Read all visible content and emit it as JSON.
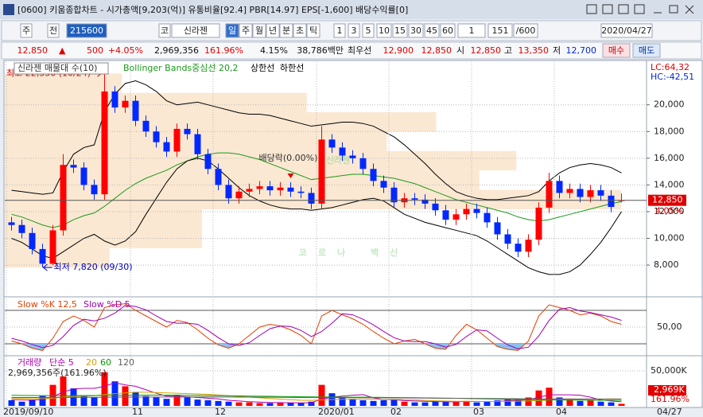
{
  "window": {
    "title": "[0600] 키움종합차트 - 시가총액[9,203(억)] 유통비율[92.4] PBR[14.97] EPS[-1,600] 배당수익률[0]"
  },
  "toolbar": {
    "items": [
      "주",
      "전",
      "215600",
      "코",
      "신라젠",
      "일",
      "주",
      "월",
      "년",
      "분",
      "초",
      "틱",
      "1",
      "3",
      "5",
      "10",
      "15",
      "30",
      "45",
      "60",
      "1",
      "151",
      "/600",
      "2020/04/27"
    ]
  },
  "quote": {
    "items": [
      "12,850",
      "▲",
      "500",
      "+4.05%",
      "2,969,356",
      "161.96%",
      "4.15%",
      "38,786백만",
      "최우선",
      "12,900",
      "12,850",
      "시",
      "12,850",
      "고",
      "13,350",
      "저",
      "12,700",
      "매수",
      "매도"
    ]
  },
  "chart_data": [
    {
      "type": "candlestick",
      "legend": "신라젠 매물대 수(10)",
      "categories": [
        "2019/09/10",
        null,
        null,
        null,
        null,
        null,
        null,
        null,
        null,
        null,
        null,
        null,
        "11",
        null,
        null,
        null,
        null,
        null,
        null,
        null,
        "12",
        null,
        null,
        null,
        null,
        null,
        null,
        null,
        null,
        null,
        "2020/01",
        null,
        null,
        null,
        null,
        null,
        null,
        "02",
        null,
        null,
        null,
        null,
        null,
        null,
        null,
        "03",
        null,
        null,
        null,
        null,
        null,
        null,
        null,
        "04",
        null,
        null,
        null,
        null,
        null,
        null
      ],
      "open": [
        11200,
        11000,
        10400,
        9200,
        8100,
        10600,
        15500,
        15300,
        14000,
        13300,
        21000,
        19800,
        20300,
        18800,
        18000,
        17200,
        16500,
        18200,
        17800,
        16300,
        15200,
        14000,
        13000,
        13500,
        13700,
        13900,
        13600,
        13800,
        13500,
        13400,
        12600,
        17400,
        16800,
        16200,
        16000,
        15200,
        14300,
        13800,
        12700,
        13000,
        12900,
        12600,
        12100,
        11400,
        11800,
        12200,
        11900,
        11200,
        10300,
        9600,
        9000,
        9900,
        12300,
        14300,
        13400,
        13700,
        13100,
        13600,
        13200,
        12850
      ],
      "high": [
        11600,
        11400,
        10800,
        9600,
        11000,
        16300,
        15900,
        15700,
        14400,
        22350,
        21400,
        20700,
        20700,
        19200,
        18400,
        17600,
        18600,
        18600,
        18200,
        16700,
        15600,
        14400,
        13900,
        14100,
        14300,
        14300,
        14200,
        14200,
        13900,
        13800,
        18400,
        17800,
        17200,
        16600,
        16400,
        15600,
        14700,
        14200,
        13400,
        13400,
        13300,
        13000,
        12500,
        12200,
        12600,
        12600,
        12300,
        11600,
        10700,
        10000,
        10300,
        12700,
        14900,
        14700,
        14100,
        14100,
        14000,
        14000,
        13600,
        13350
      ],
      "low": [
        10600,
        10000,
        8800,
        7820,
        8000,
        10200,
        14900,
        13600,
        12900,
        12900,
        19400,
        19400,
        18400,
        17600,
        16800,
        16100,
        16100,
        17400,
        15900,
        14800,
        13600,
        12600,
        12600,
        13100,
        13300,
        13200,
        13200,
        13100,
        13000,
        12200,
        12200,
        16400,
        15800,
        15600,
        14800,
        13900,
        13400,
        12300,
        12300,
        12500,
        12200,
        11700,
        11000,
        11000,
        11400,
        11500,
        10800,
        9900,
        9200,
        8600,
        8600,
        9500,
        11900,
        13000,
        13000,
        12700,
        12700,
        12800,
        11950,
        12700
      ],
      "close": [
        11000,
        10400,
        9200,
        8100,
        10600,
        15500,
        15300,
        14000,
        13300,
        21000,
        19800,
        20300,
        18800,
        18000,
        17200,
        16500,
        18200,
        17800,
        16300,
        15200,
        14000,
        13000,
        13500,
        13700,
        13900,
        13600,
        13800,
        13500,
        13400,
        12600,
        17400,
        16800,
        16200,
        16000,
        15200,
        14300,
        13800,
        12700,
        13000,
        12900,
        12600,
        12100,
        11400,
        11800,
        12200,
        11900,
        11200,
        10300,
        9600,
        9000,
        9900,
        12300,
        14300,
        13400,
        13700,
        13100,
        13600,
        13200,
        12350,
        12850
      ],
      "up_color": "#ff0000",
      "down_color": "#0028ff",
      "ylim": [
        5800,
        23200
      ],
      "yticks": [
        {
          "value": 8000,
          "label": "8,000"
        },
        {
          "value": 10000,
          "label": "10,000"
        },
        {
          "value": 12000,
          "label": "12,000"
        },
        {
          "value": 14000,
          "label": "14,000"
        },
        {
          "value": 16000,
          "label": "16,000"
        },
        {
          "value": 18000,
          "label": "18,000"
        },
        {
          "value": 20000,
          "label": "20,000"
        }
      ],
      "grid": true,
      "series": [
        {
          "name": "Bollinger Bands중심선 20,2",
          "color": "#1a9a1a",
          "values": [
            11800,
            11600,
            11300,
            11000,
            10800,
            11000,
            11400,
            11700,
            11900,
            12400,
            13000,
            13600,
            14100,
            14500,
            14800,
            15100,
            15500,
            15800,
            16100,
            16300,
            16400,
            16400,
            16300,
            16100,
            15900,
            15600,
            15300,
            15000,
            14700,
            14400,
            14500,
            14600,
            14700,
            14800,
            14800,
            14700,
            14600,
            14500,
            14300,
            14100,
            13800,
            13500,
            13200,
            12900,
            12700,
            12500,
            12300,
            12100,
            11900,
            11600,
            11400,
            11300,
            11400,
            11600,
            11800,
            12000,
            12200,
            12400,
            12600,
            12750
          ]
        },
        {
          "name": "상한선",
          "color": "#000000",
          "values": [
            13600,
            13500,
            13400,
            13300,
            13400,
            15000,
            16300,
            16800,
            17000,
            19500,
            20800,
            21600,
            21800,
            21500,
            21000,
            20300,
            20000,
            20100,
            20200,
            20000,
            19800,
            19600,
            19400,
            19300,
            19300,
            19200,
            19000,
            18800,
            18600,
            18400,
            18500,
            18600,
            18700,
            18700,
            18600,
            18400,
            18000,
            17600,
            17000,
            16300,
            15600,
            14800,
            14100,
            13500,
            13200,
            13000,
            12900,
            12900,
            13000,
            13100,
            13200,
            13500,
            14300,
            14900,
            15300,
            15500,
            15600,
            15500,
            15300,
            14900
          ]
        },
        {
          "name": "하한선",
          "color": "#000000",
          "values": [
            10000,
            9700,
            9200,
            8700,
            8500,
            9000,
            9500,
            10000,
            10300,
            9800,
            9500,
            9800,
            10500,
            11800,
            13000,
            14200,
            15200,
            15800,
            16000,
            15800,
            15200,
            14500,
            13800,
            13200,
            12800,
            12500,
            12300,
            12200,
            12200,
            12100,
            12200,
            12300,
            12500,
            12700,
            12900,
            13000,
            12800,
            12300,
            11800,
            11500,
            11200,
            11000,
            10800,
            10600,
            10400,
            10200,
            9800,
            9300,
            8800,
            8300,
            7800,
            7500,
            7300,
            7300,
            7500,
            8000,
            8800,
            9700,
            10800,
            12000
          ]
        }
      ],
      "volume_profile": {
        "bins": [
          7820,
          9273,
          10726,
          12179,
          13632,
          15085,
          16538,
          17991,
          19444,
          20897,
          22350
        ],
        "values": [
          17,
          32,
          32,
          100,
          77,
          83,
          62,
          70,
          49,
          19
        ],
        "color": "#fbe8d2"
      },
      "annotations": [
        {
          "text": "최고 22,350 (10/24)",
          "index": 9,
          "value": 22350,
          "color": "#d00000"
        },
        {
          "text": "최저 7,820 (09/30)",
          "index": 3,
          "value": 7820,
          "color": "#0000c0"
        },
        {
          "text": "배당락(0.00%)",
          "index": 27
        }
      ],
      "current": {
        "value": 12850,
        "label": "12,850",
        "change_label": "4.05%"
      },
      "right_labels": [
        "LC:64,32",
        "HC:-42,51"
      ],
      "watermarks": [
        "신라젠",
        "코로나 백신"
      ],
      "cursor_date": "04/27"
    },
    {
      "type": "line",
      "ylim": [
        0,
        100
      ],
      "yticks": [
        {
          "value": 50,
          "label": "50,00"
        }
      ],
      "reference_lines": [
        20,
        80
      ],
      "series": [
        {
          "name": "Slow %K 12,5",
          "color": "#e04000",
          "values": [
            25,
            20,
            12,
            8,
            30,
            60,
            70,
            62,
            50,
            85,
            90,
            92,
            80,
            70,
            60,
            50,
            62,
            58,
            45,
            30,
            18,
            12,
            20,
            35,
            50,
            55,
            52,
            45,
            35,
            20,
            70,
            80,
            72,
            65,
            55,
            42,
            30,
            20,
            25,
            28,
            20,
            12,
            10,
            35,
            55,
            45,
            30,
            15,
            10,
            8,
            25,
            70,
            90,
            85,
            80,
            72,
            75,
            70,
            60,
            55
          ]
        },
        {
          "name": "Slow %D 5",
          "color": "#a000b0",
          "values": [
            30,
            25,
            19,
            13,
            17,
            33,
            53,
            64,
            61,
            66,
            75,
            89,
            87,
            81,
            70,
            60,
            57,
            57,
            55,
            44,
            31,
            20,
            17,
            22,
            35,
            47,
            52,
            51,
            44,
            33,
            42,
            57,
            74,
            72,
            64,
            54,
            42,
            31,
            25,
            24,
            24,
            20,
            14,
            19,
            33,
            45,
            43,
            30,
            18,
            11,
            14,
            34,
            62,
            82,
            85,
            79,
            76,
            72,
            68,
            62
          ]
        }
      ]
    },
    {
      "type": "bar",
      "legend": "거래량",
      "caption": "2,969,356주(161.96%)",
      "values": [
        8000,
        6000,
        9000,
        14000,
        30000,
        42000,
        25000,
        15000,
        12000,
        48000,
        35000,
        28000,
        20000,
        14000,
        12000,
        10000,
        16000,
        12000,
        9000,
        8000,
        7000,
        6000,
        5000,
        5000,
        4000,
        4000,
        5000,
        4000,
        4000,
        6000,
        30000,
        18000,
        12000,
        10000,
        8000,
        7000,
        8000,
        9000,
        6000,
        5000,
        5000,
        6000,
        7000,
        6000,
        7000,
        5000,
        6000,
        8000,
        10000,
        9000,
        12000,
        22000,
        26000,
        12000,
        9000,
        7000,
        8000,
        6000,
        5000,
        2969.356
      ],
      "current_label": "2,969K",
      "current_pct": "161.96%",
      "ylim": [
        0,
        70500
      ],
      "yticks": [
        {
          "value": 50000,
          "label": "50,000K"
        }
      ],
      "series": [
        {
          "name": "단순 5",
          "color": "#b000b0",
          "values": [
            9000,
            8500,
            8200,
            9000,
            13000,
            20000,
            24000,
            25000,
            25000,
            28000,
            33000,
            30000,
            28000,
            23000,
            18000,
            14000,
            14000,
            13000,
            12000,
            11000,
            10000,
            8000,
            7000,
            6000,
            5400,
            4800,
            4600,
            4400,
            4200,
            4600,
            9600,
            12400,
            14000,
            15200,
            16000,
            11400,
            9000,
            8800,
            7600,
            7000,
            6600,
            6200,
            5800,
            5800,
            6200,
            6200,
            6200,
            6400,
            7200,
            7800,
            9000,
            12200,
            15800,
            15800,
            15800,
            15200,
            12400,
            8400,
            7000,
            5800
          ]
        },
        {
          "name": "20",
          "color": "#d8a000",
          "values": [
            11000,
            10800,
            10500,
            10400,
            11000,
            12500,
            13500,
            14000,
            14500,
            16000,
            17500,
            18500,
            19500,
            19500,
            19000,
            18500,
            18000,
            17500,
            17000,
            16500,
            15500,
            14500,
            13500,
            12500,
            11500,
            10500,
            9600,
            8800,
            8000,
            7800,
            8600,
            9000,
            9200,
            9400,
            9500,
            9400,
            9300,
            9200,
            9000,
            8600,
            7800,
            7200,
            6800,
            6600,
            6500,
            6400,
            6300,
            6400,
            6500,
            6700,
            7000,
            7600,
            8400,
            8900,
            9200,
            9400,
            9600,
            9800,
            9900,
            9800
          ]
        },
        {
          "name": "60",
          "color": "#00a000",
          "values": [
            15000,
            14900,
            14800,
            14700,
            14600,
            14600,
            14700,
            14800,
            14800,
            14900,
            15000,
            15100,
            15200,
            15300,
            15300,
            15300,
            15200,
            15100,
            15000,
            14800,
            14600,
            14400,
            14200,
            14000,
            13800,
            13600,
            13400,
            13200,
            13000,
            12800,
            12700,
            12600,
            12500,
            12400,
            12300,
            12200,
            12100,
            12000,
            11800,
            11600,
            11400,
            11200,
            11000,
            10800,
            10500,
            10200,
            9900,
            9600,
            9300,
            9000,
            8800,
            8600,
            8500,
            8400,
            8300,
            8200,
            8100,
            8000,
            7900,
            7800
          ]
        },
        {
          "name": "120",
          "color": "#606060",
          "values": [
            12000,
            12000,
            12000,
            12000,
            12000,
            12100,
            12100,
            12200,
            12200,
            12300,
            12400,
            12500,
            12500,
            12600,
            12600,
            12700,
            12700,
            12700,
            12700,
            12700,
            12600,
            12600,
            12500,
            12500,
            12400,
            12300,
            12200,
            12100,
            12000,
            11900,
            11900,
            11800,
            11800,
            11700,
            11700,
            11600,
            11500,
            11400,
            11300,
            11200,
            11100,
            11000,
            10900,
            10800,
            10700,
            10600,
            10500,
            10400,
            10300,
            10200,
            10100,
            10000,
            10000,
            9900,
            9900,
            9800,
            9800,
            9700,
            9700,
            9600
          ]
        }
      ]
    }
  ]
}
